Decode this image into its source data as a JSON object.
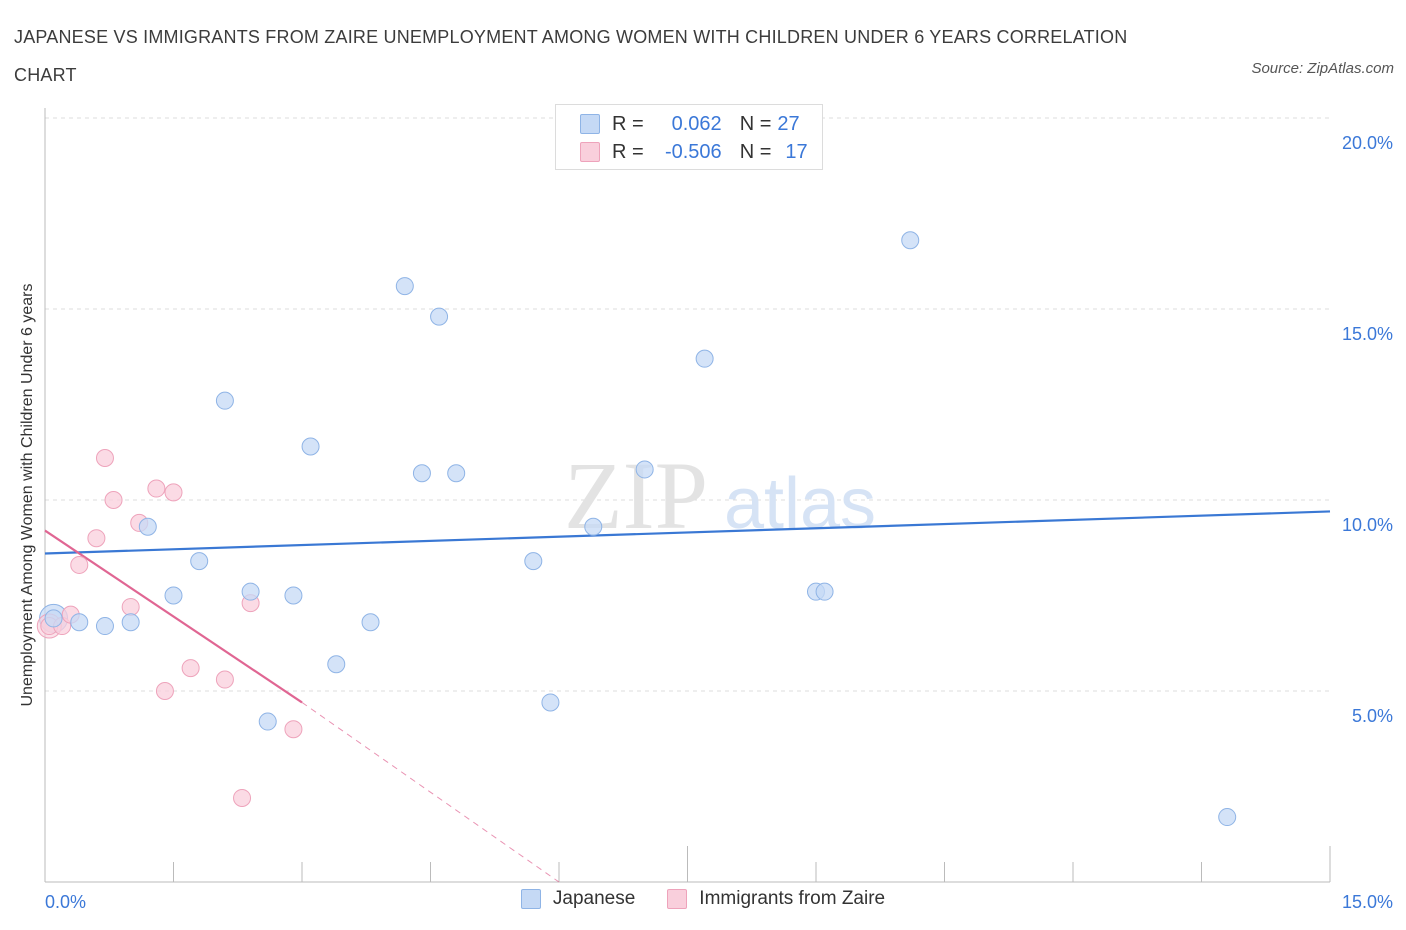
{
  "header": {
    "title": "JAPANESE VS IMMIGRANTS FROM ZAIRE UNEMPLOYMENT AMONG WOMEN WITH CHILDREN UNDER 6 YEARS CORRELATION CHART",
    "source": "Source: ZipAtlas.com"
  },
  "watermark": {
    "zip": "ZIP",
    "atlas": "atlas"
  },
  "legend": {
    "japanese": {
      "r_label": "R =",
      "r_value": "0.062",
      "n_label": "N =",
      "n_value": "27"
    },
    "zaire": {
      "r_label": "R =",
      "r_value": "-0.506",
      "n_label": "N =",
      "n_value": "17"
    }
  },
  "colors": {
    "blue_fill": "#c5d9f5",
    "blue_stroke": "#8fb4e6",
    "blue_line": "#3a78d4",
    "pink_fill": "#f9cfdc",
    "pink_stroke": "#eea3bb",
    "pink_line": "#e06693",
    "axis_text": "#3b78d8",
    "grid": "#dddddd"
  },
  "chart_data": {
    "type": "scatter",
    "title": "JAPANESE VS IMMIGRANTS FROM ZAIRE UNEMPLOYMENT AMONG WOMEN WITH CHILDREN UNDER 6 YEARS CORRELATION CHART",
    "xlabel": "",
    "ylabel": "Unemployment Among Women with Children Under 6 years",
    "xlim": [
      0,
      15
    ],
    "ylim": [
      0,
      20
    ],
    "x_tick_labels": [
      {
        "value": 0,
        "label": "0.0%"
      },
      {
        "value": 15,
        "label": "15.0%"
      }
    ],
    "y_tick_labels": [
      {
        "value": 5,
        "label": "5.0%"
      },
      {
        "value": 10,
        "label": "10.0%"
      },
      {
        "value": 15,
        "label": "15.0%"
      },
      {
        "value": 20,
        "label": "20.0%"
      }
    ],
    "series": [
      {
        "name": "Japanese",
        "color": "blue",
        "points": [
          [
            0.1,
            6.9
          ],
          [
            0.4,
            6.8
          ],
          [
            1.0,
            6.8
          ],
          [
            0.7,
            6.7
          ],
          [
            1.2,
            9.3
          ],
          [
            1.5,
            7.5
          ],
          [
            1.8,
            8.4
          ],
          [
            2.1,
            12.6
          ],
          [
            2.4,
            7.6
          ],
          [
            2.6,
            4.2
          ],
          [
            2.9,
            7.5
          ],
          [
            3.1,
            11.4
          ],
          [
            3.4,
            5.7
          ],
          [
            3.8,
            6.8
          ],
          [
            4.2,
            15.6
          ],
          [
            4.4,
            10.7
          ],
          [
            4.6,
            14.8
          ],
          [
            4.8,
            10.7
          ],
          [
            5.7,
            8.4
          ],
          [
            5.9,
            4.7
          ],
          [
            6.4,
            9.3
          ],
          [
            7.0,
            10.8
          ],
          [
            7.7,
            13.7
          ],
          [
            9.0,
            7.6
          ],
          [
            9.1,
            7.6
          ],
          [
            10.1,
            16.8
          ],
          [
            13.8,
            1.7
          ]
        ],
        "trend": {
          "x": [
            0,
            15
          ],
          "y": [
            8.6,
            9.7
          ]
        }
      },
      {
        "name": "Immigrants from Zaire",
        "color": "pink",
        "points": [
          [
            0.05,
            6.7
          ],
          [
            0.2,
            6.7
          ],
          [
            0.4,
            8.3
          ],
          [
            0.6,
            9.0
          ],
          [
            0.7,
            11.1
          ],
          [
            0.8,
            10.0
          ],
          [
            1.0,
            7.2
          ],
          [
            1.1,
            9.4
          ],
          [
            1.3,
            10.3
          ],
          [
            1.4,
            5.0
          ],
          [
            1.5,
            10.2
          ],
          [
            1.7,
            5.6
          ],
          [
            2.1,
            5.3
          ],
          [
            2.3,
            2.2
          ],
          [
            2.4,
            7.3
          ],
          [
            2.9,
            4.0
          ],
          [
            0.3,
            7.0
          ]
        ],
        "trend": {
          "x": [
            0,
            3.0
          ],
          "y": [
            9.2,
            4.7
          ]
        },
        "trend_extrapolated": {
          "x": [
            3.0,
            6.0
          ],
          "y": [
            4.7,
            0.0
          ]
        }
      }
    ]
  },
  "bottom_legend": {
    "japanese": "Japanese",
    "zaire": "Immigrants from Zaire"
  }
}
